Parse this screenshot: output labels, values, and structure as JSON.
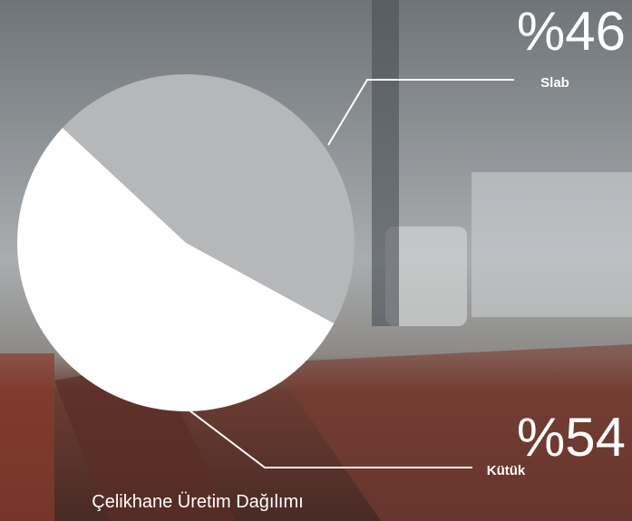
{
  "chart_data": {
    "type": "pie",
    "title": "Çelikhane Üretim Dağılımı",
    "categories": [
      "Slab",
      "Kütük"
    ],
    "values": [
      46,
      54
    ],
    "value_labels": [
      "%46",
      "%54"
    ],
    "colors": [
      "#b6b7b9",
      "#ffffff"
    ]
  }
}
